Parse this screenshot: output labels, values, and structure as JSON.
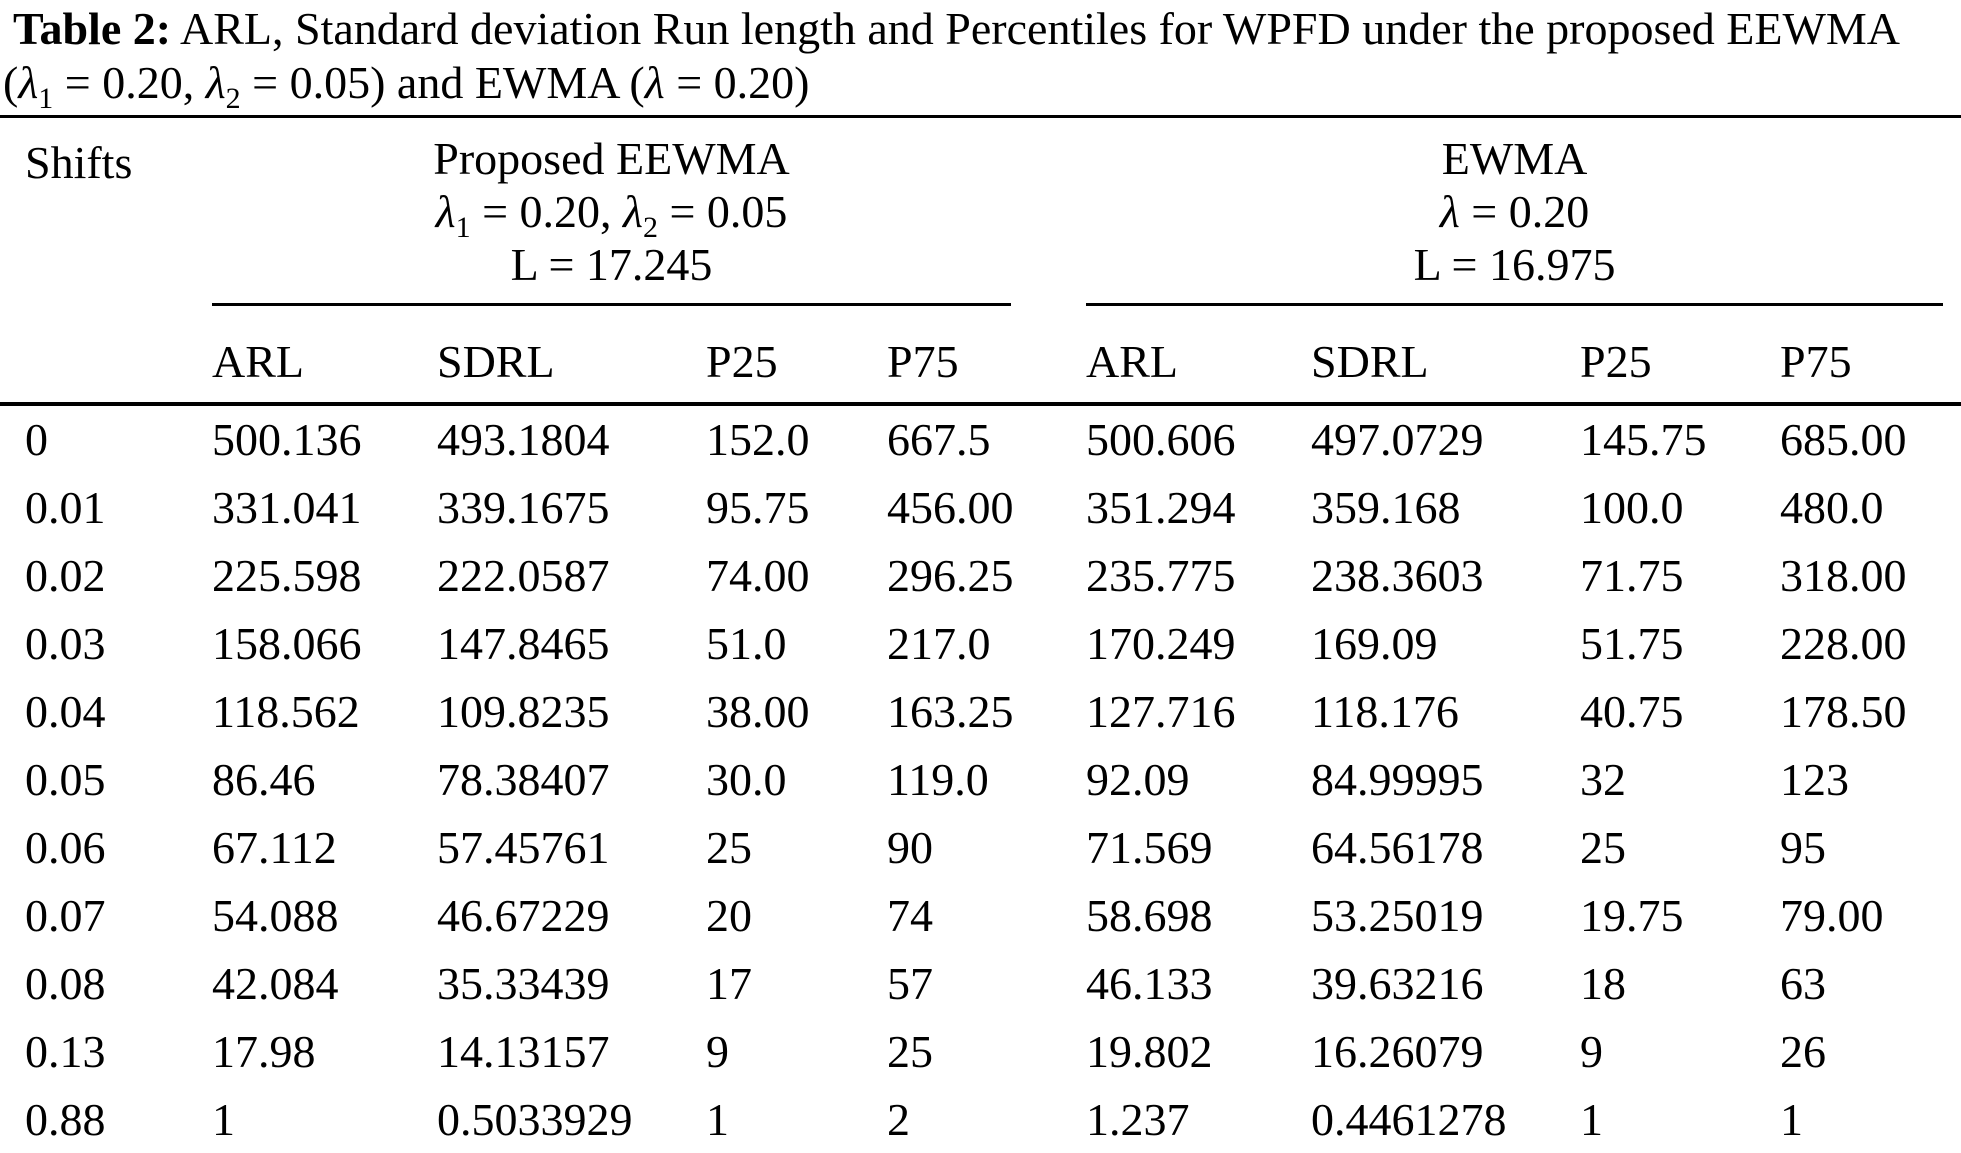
{
  "title": {
    "label": "Table 2:",
    "line1_rest": " ARL, Standard deviation Run length and Percentiles for WPFD under the proposed EEWMA",
    "line2_parts": [
      {
        "t": "("
      },
      {
        "t": "λ",
        "style": "i"
      },
      {
        "t": "1",
        "style": "sub"
      },
      {
        "t": " = 0.20, "
      },
      {
        "t": "λ",
        "style": "i"
      },
      {
        "t": "2",
        "style": "sub"
      },
      {
        "t": " = 0.05) and EWMA ("
      },
      {
        "t": "λ",
        "style": "i"
      },
      {
        "t": " = 0.20)"
      }
    ]
  },
  "table": {
    "shifts_header": "Shifts",
    "groups": [
      {
        "name": "Proposed EEWMA",
        "params_parts": [
          {
            "t": "λ",
            "style": "i"
          },
          {
            "t": "1",
            "style": "sub"
          },
          {
            "t": " = 0.20, "
          },
          {
            "t": "λ",
            "style": "i"
          },
          {
            "t": "2",
            "style": "sub"
          },
          {
            "t": " = 0.05"
          }
        ],
        "limit": "L = 17.245",
        "columns": [
          "ARL",
          "SDRL",
          "P25",
          "P75"
        ]
      },
      {
        "name": "EWMA",
        "params_parts": [
          {
            "t": "λ",
            "style": "i"
          },
          {
            "t": " = 0.20"
          }
        ],
        "limit": "L = 16.975",
        "columns": [
          "ARL",
          "SDRL",
          "P25",
          "P75"
        ]
      }
    ],
    "rows": [
      {
        "shift": "0",
        "eewma": [
          "500.136",
          "493.1804",
          "152.0",
          "667.5"
        ],
        "ewma": [
          "500.606",
          "497.0729",
          "145.75",
          "685.00"
        ]
      },
      {
        "shift": "0.01",
        "eewma": [
          "331.041",
          "339.1675",
          "95.75",
          "456.00"
        ],
        "ewma": [
          "351.294",
          "359.168",
          "100.0",
          "480.0"
        ]
      },
      {
        "shift": "0.02",
        "eewma": [
          "225.598",
          "222.0587",
          "74.00",
          "296.25"
        ],
        "ewma": [
          "235.775",
          "238.3603",
          "71.75",
          "318.00"
        ]
      },
      {
        "shift": "0.03",
        "eewma": [
          "158.066",
          "147.8465",
          "51.0",
          "217.0"
        ],
        "ewma": [
          "170.249",
          "169.09",
          "51.75",
          "228.00"
        ]
      },
      {
        "shift": "0.04",
        "eewma": [
          "118.562",
          "109.8235",
          "38.00",
          "163.25"
        ],
        "ewma": [
          "127.716",
          "118.176",
          "40.75",
          "178.50"
        ]
      },
      {
        "shift": "0.05",
        "eewma": [
          "86.46",
          "78.38407",
          "30.0",
          "119.0"
        ],
        "ewma": [
          "92.09",
          "84.99995",
          "32",
          "123"
        ]
      },
      {
        "shift": "0.06",
        "eewma": [
          "67.112",
          "57.45761",
          "25",
          "90"
        ],
        "ewma": [
          "71.569",
          "64.56178",
          "25",
          "95"
        ]
      },
      {
        "shift": "0.07",
        "eewma": [
          "54.088",
          "46.67229",
          "20",
          "74"
        ],
        "ewma": [
          "58.698",
          "53.25019",
          "19.75",
          "79.00"
        ]
      },
      {
        "shift": "0.08",
        "eewma": [
          "42.084",
          "35.33439",
          "17",
          "57"
        ],
        "ewma": [
          "46.133",
          "39.63216",
          "18",
          "63"
        ]
      },
      {
        "shift": "0.13",
        "eewma": [
          "17.98",
          "14.13157",
          "9",
          "25"
        ],
        "ewma": [
          "19.802",
          "16.26079",
          "9",
          "26"
        ]
      },
      {
        "shift": "0.88",
        "eewma": [
          "1",
          "0.5033929",
          "1",
          "2"
        ],
        "ewma": [
          "1.237",
          "0.4461278",
          "1",
          "1"
        ]
      }
    ],
    "colors": {
      "text": "#000000",
      "background": "#ffffff",
      "rule": "#000000"
    }
  }
}
